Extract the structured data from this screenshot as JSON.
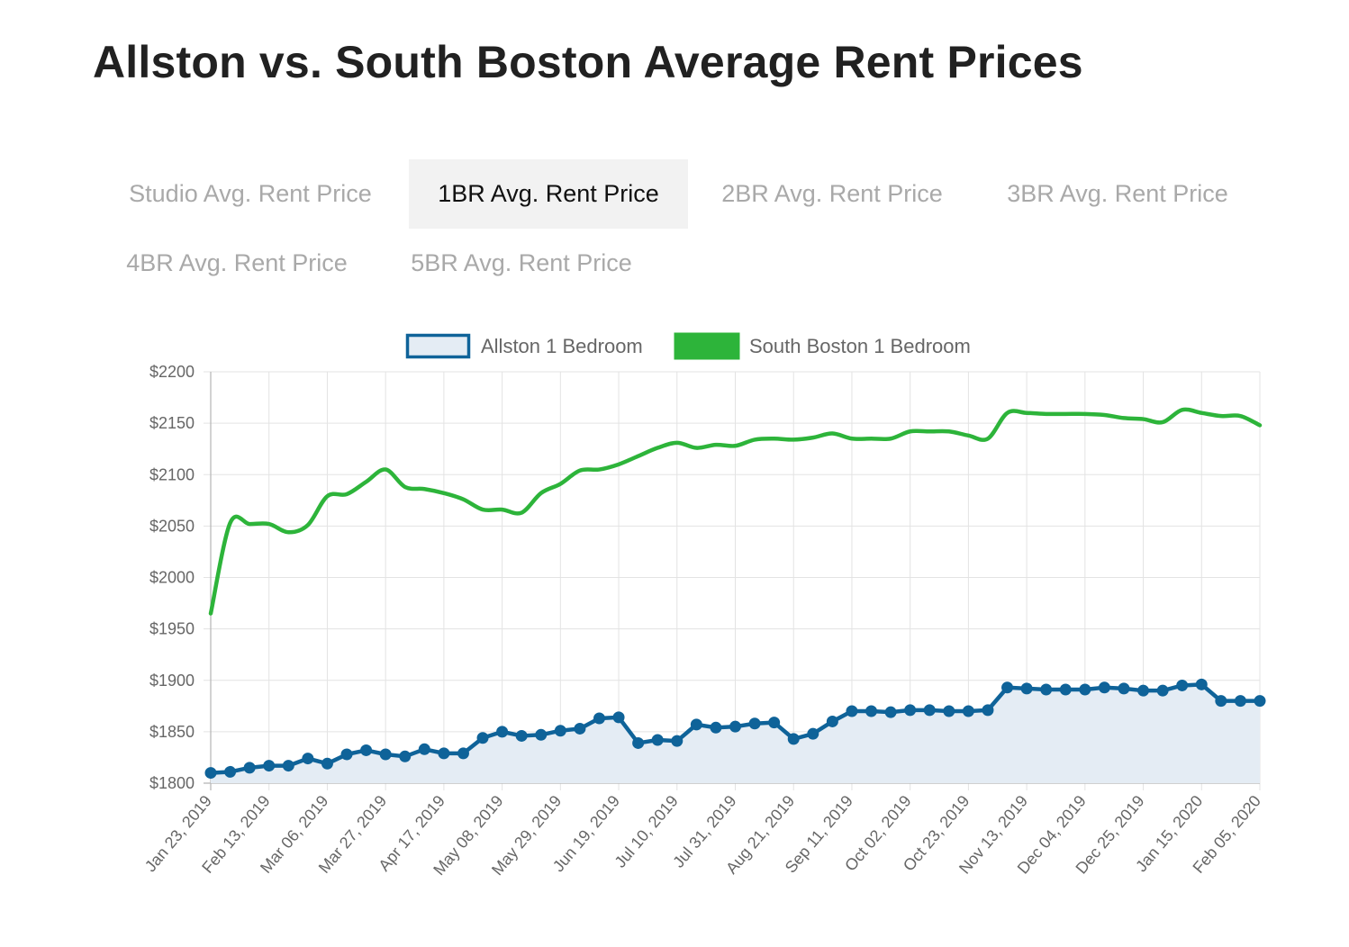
{
  "page": {
    "title": "Allston vs. South Boston Average Rent Prices"
  },
  "tabs": [
    {
      "label": "Studio Avg. Rent Price",
      "active": false
    },
    {
      "label": "1BR Avg. Rent Price",
      "active": true
    },
    {
      "label": "2BR Avg. Rent Price",
      "active": false
    },
    {
      "label": "3BR Avg. Rent Price",
      "active": false
    },
    {
      "label": "4BR Avg. Rent Price",
      "active": false
    },
    {
      "label": "5BR Avg. Rent Price",
      "active": false
    }
  ],
  "chart_data": {
    "type": "line",
    "title": "",
    "xlabel": "",
    "ylabel": "",
    "ylim": [
      1800,
      2200
    ],
    "y_ticks": [
      1800,
      1850,
      1900,
      1950,
      2000,
      2050,
      2100,
      2150,
      2200
    ],
    "y_tick_labels": [
      "$1800",
      "$1850",
      "$1900",
      "$1950",
      "$2000",
      "$2050",
      "$2100",
      "$2150",
      "$2200"
    ],
    "x_tick_labels": [
      "Jan 23, 2019",
      "Feb 13, 2019",
      "Mar 06, 2019",
      "Mar 27, 2019",
      "Apr 17, 2019",
      "May 08, 2019",
      "May 29, 2019",
      "Jun 19, 2019",
      "Jul 10, 2019",
      "Jul 31, 2019",
      "Aug 21, 2019",
      "Sep 11, 2019",
      "Oct 02, 2019",
      "Oct 23, 2019",
      "Nov 13, 2019",
      "Dec 04, 2019",
      "Dec 25, 2019",
      "Jan 15, 2020",
      "Feb 05, 2020"
    ],
    "x_tick_every": 3,
    "grid": true,
    "legend": "top",
    "series": [
      {
        "name": "Allston 1 Bedroom",
        "color": "#0f6399",
        "fill": "#e4ecf4",
        "area": true,
        "markers": true,
        "values": [
          1810,
          1811,
          1815,
          1817,
          1817,
          1824,
          1819,
          1828,
          1832,
          1828,
          1826,
          1833,
          1829,
          1829,
          1844,
          1850,
          1846,
          1847,
          1851,
          1853,
          1863,
          1864,
          1839,
          1842,
          1841,
          1857,
          1854,
          1855,
          1858,
          1859,
          1843,
          1848,
          1860,
          1870,
          1870,
          1869,
          1871,
          1871,
          1870,
          1870,
          1871,
          1893,
          1892,
          1891,
          1891,
          1891,
          1893,
          1892,
          1890,
          1890,
          1895,
          1896,
          1880,
          1880,
          1880
        ]
      },
      {
        "name": "South Boston 1 Bedroom",
        "color": "#2db43a",
        "area": false,
        "markers": false,
        "values": [
          1965,
          2053,
          2052,
          2052,
          2044,
          2051,
          2079,
          2081,
          2093,
          2105,
          2088,
          2086,
          2082,
          2076,
          2066,
          2066,
          2063,
          2082,
          2091,
          2104,
          2105,
          2110,
          2118,
          2126,
          2131,
          2126,
          2129,
          2128,
          2134,
          2135,
          2134,
          2136,
          2140,
          2135,
          2135,
          2135,
          2142,
          2142,
          2142,
          2138,
          2135,
          2160,
          2160,
          2159,
          2159,
          2159,
          2158,
          2155,
          2154,
          2151,
          2163,
          2160,
          2157,
          2157,
          2148
        ]
      }
    ]
  }
}
